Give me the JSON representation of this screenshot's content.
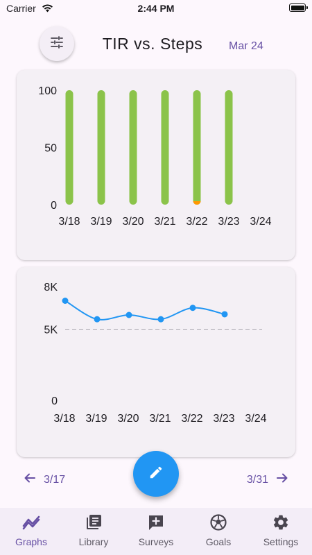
{
  "status_bar": {
    "carrier": "Carrier",
    "time": "2:44 PM"
  },
  "header": {
    "title": "TIR vs. Steps",
    "date": "Mar 24",
    "filter_icon": "tune-icon"
  },
  "colors": {
    "accent": "#6750a4",
    "tir_in_range": "#8bc34a",
    "tir_low": "#ff9800",
    "steps_line": "#2196f3",
    "fab": "#2196f3"
  },
  "chart_data": [
    {
      "type": "bar",
      "categories": [
        "3/18",
        "3/19",
        "3/20",
        "3/21",
        "3/22",
        "3/23",
        "3/24"
      ],
      "series": [
        {
          "values": [
            100,
            100,
            100,
            100,
            97,
            100,
            null
          ]
        },
        {
          "values": [
            0,
            0,
            0,
            0,
            3,
            0,
            null
          ]
        }
      ],
      "y_ticks": [
        "0",
        "50",
        "100"
      ],
      "ylim": [
        0,
        100
      ],
      "stacked": true
    },
    {
      "type": "line",
      "categories": [
        "3/18",
        "3/19",
        "3/20",
        "3/21",
        "3/22",
        "3/23",
        "3/24"
      ],
      "values": [
        7000,
        5700,
        6000,
        5700,
        6500,
        6050,
        null
      ],
      "y_ticks": [
        "0",
        "5K",
        "8K"
      ],
      "ylim": [
        0,
        8000
      ],
      "reference_line": 5000,
      "reference_style": "dashed"
    }
  ],
  "range_nav": {
    "prev_label": "3/17",
    "next_label": "3/31"
  },
  "fab": {
    "icon": "pencil-icon"
  },
  "bottom_nav": {
    "items": [
      {
        "label": "Graphs",
        "icon": "graphs-icon",
        "active": true
      },
      {
        "label": "Library",
        "icon": "library-icon",
        "active": false
      },
      {
        "label": "Surveys",
        "icon": "surveys-icon",
        "active": false
      },
      {
        "label": "Goals",
        "icon": "soccer-ball-icon",
        "active": false
      },
      {
        "label": "Settings",
        "icon": "gear-icon",
        "active": false
      }
    ]
  }
}
